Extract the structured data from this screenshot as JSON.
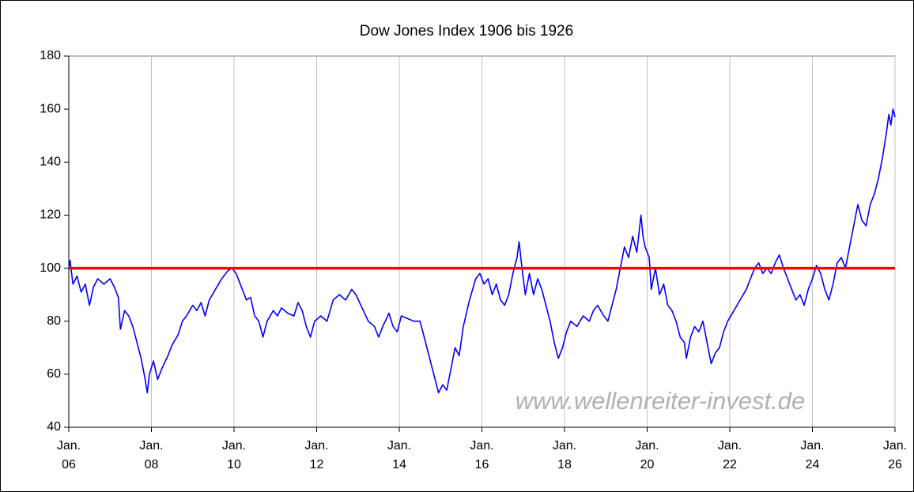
{
  "chart_data": {
    "type": "line",
    "title": "Dow Jones Index 1906 bis 1926",
    "x": [
      1906.0,
      1906.03,
      1906.1,
      1906.2,
      1906.3,
      1906.4,
      1906.5,
      1906.6,
      1906.7,
      1906.85,
      1907.0,
      1907.1,
      1907.2,
      1907.25,
      1907.35,
      1907.45,
      1907.55,
      1907.65,
      1907.75,
      1907.85,
      1907.9,
      1907.95,
      1908.05,
      1908.15,
      1908.25,
      1908.4,
      1908.5,
      1908.65,
      1908.75,
      1908.85,
      1909.0,
      1909.1,
      1909.2,
      1909.3,
      1909.4,
      1909.55,
      1909.7,
      1909.85,
      1909.95,
      1910.05,
      1910.15,
      1910.3,
      1910.4,
      1910.5,
      1910.6,
      1910.7,
      1910.8,
      1910.95,
      1911.05,
      1911.15,
      1911.3,
      1911.45,
      1911.55,
      1911.65,
      1911.75,
      1911.85,
      1911.95,
      1912.1,
      1912.25,
      1912.4,
      1912.55,
      1912.7,
      1912.85,
      1912.95,
      1913.1,
      1913.25,
      1913.4,
      1913.5,
      1913.6,
      1913.75,
      1913.85,
      1913.95,
      1914.05,
      1914.2,
      1914.35,
      1914.5,
      1914.57,
      1914.95,
      1915.05,
      1915.15,
      1915.25,
      1915.35,
      1915.45,
      1915.55,
      1915.7,
      1915.85,
      1915.95,
      1916.05,
      1916.15,
      1916.25,
      1916.35,
      1916.45,
      1916.55,
      1916.65,
      1916.75,
      1916.85,
      1916.9,
      1916.97,
      1917.05,
      1917.15,
      1917.25,
      1917.35,
      1917.45,
      1917.55,
      1917.65,
      1917.75,
      1917.85,
      1917.95,
      1918.05,
      1918.15,
      1918.3,
      1918.45,
      1918.6,
      1918.7,
      1918.8,
      1918.95,
      1919.05,
      1919.15,
      1919.25,
      1919.35,
      1919.45,
      1919.55,
      1919.65,
      1919.75,
      1919.85,
      1919.9,
      1919.95,
      1920.05,
      1920.1,
      1920.2,
      1920.3,
      1920.4,
      1920.5,
      1920.6,
      1920.7,
      1920.8,
      1920.9,
      1920.95,
      1921.05,
      1921.15,
      1921.25,
      1921.35,
      1921.45,
      1921.55,
      1921.65,
      1921.75,
      1921.85,
      1921.95,
      1922.1,
      1922.25,
      1922.4,
      1922.5,
      1922.6,
      1922.7,
      1922.8,
      1922.9,
      1923.0,
      1923.1,
      1923.2,
      1923.3,
      1923.4,
      1923.5,
      1923.6,
      1923.7,
      1923.8,
      1923.9,
      1924.0,
      1924.1,
      1924.2,
      1924.3,
      1924.4,
      1924.5,
      1924.6,
      1924.7,
      1924.8,
      1924.9,
      1925.0,
      1925.1,
      1925.2,
      1925.3,
      1925.4,
      1925.5,
      1925.6,
      1925.7,
      1925.8,
      1925.85,
      1925.9,
      1925.95,
      1926.0
    ],
    "values": [
      100,
      103,
      94,
      97,
      91,
      94,
      86,
      93,
      96,
      94,
      96,
      93,
      89,
      77,
      84,
      82,
      78,
      72,
      66,
      58,
      53,
      60,
      65,
      58,
      62,
      67,
      71,
      75,
      80,
      82,
      86,
      84,
      87,
      82,
      88,
      92,
      96,
      99,
      100,
      98,
      94,
      88,
      89,
      82,
      80,
      74,
      80,
      84,
      82,
      85,
      83,
      82,
      87,
      84,
      78,
      74,
      80,
      82,
      80,
      88,
      90,
      88,
      92,
      90,
      85,
      80,
      78,
      74,
      78,
      83,
      78,
      76,
      82,
      81,
      80,
      80,
      76,
      53,
      56,
      54,
      62,
      70,
      67,
      78,
      88,
      96,
      98,
      94,
      96,
      90,
      94,
      88,
      86,
      90,
      98,
      104,
      110,
      100,
      90,
      98,
      90,
      96,
      92,
      86,
      80,
      72,
      66,
      70,
      76,
      80,
      78,
      82,
      80,
      84,
      86,
      82,
      80,
      86,
      92,
      100,
      108,
      104,
      112,
      106,
      120,
      112,
      108,
      104,
      92,
      100,
      90,
      94,
      86,
      84,
      80,
      74,
      72,
      66,
      74,
      78,
      76,
      80,
      72,
      64,
      68,
      70,
      76,
      80,
      84,
      88,
      92,
      96,
      100,
      102,
      98,
      100,
      98,
      102,
      105,
      100,
      96,
      92,
      88,
      90,
      86,
      92,
      96,
      101,
      98,
      92,
      88,
      94,
      102,
      104,
      100,
      108,
      116,
      124,
      118,
      116,
      124,
      128,
      134,
      142,
      152,
      158,
      154,
      160,
      157
    ],
    "color": "#0000ff",
    "xlim": [
      1906,
      1926
    ],
    "xticks": [
      {
        "value": 1906,
        "label": "Jan. 06"
      },
      {
        "value": 1908,
        "label": "Jan. 08"
      },
      {
        "value": 1910,
        "label": "Jan. 10"
      },
      {
        "value": 1912,
        "label": "Jan. 12"
      },
      {
        "value": 1914,
        "label": "Jan. 14"
      },
      {
        "value": 1916,
        "label": "Jan. 16"
      },
      {
        "value": 1918,
        "label": "Jan. 18"
      },
      {
        "value": 1920,
        "label": "Jan. 20"
      },
      {
        "value": 1922,
        "label": "Jan. 22"
      },
      {
        "value": 1924,
        "label": "Jan. 24"
      },
      {
        "value": 1926,
        "label": "Jan. 26"
      }
    ],
    "ylim": [
      40,
      180
    ],
    "yticks": [
      40,
      60,
      80,
      100,
      120,
      140,
      160,
      180
    ],
    "grid": "x",
    "reference_line": {
      "value": 100,
      "color": "#ff0000"
    },
    "annotation": "www.wellenreiter-invest.de"
  }
}
